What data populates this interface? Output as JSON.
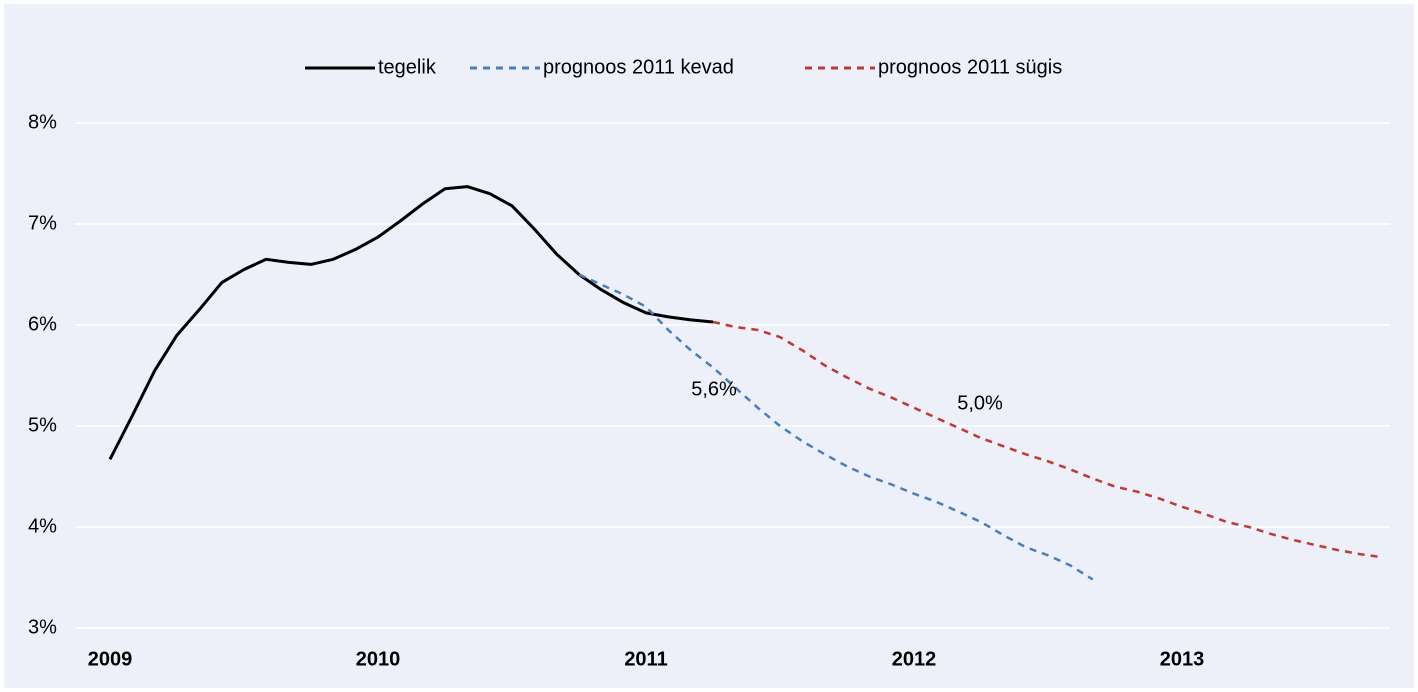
{
  "chart_data": {
    "type": "line",
    "xlim": [
      2009,
      2013.776
    ],
    "xticks": [
      2009,
      2010,
      2011,
      2012,
      2013
    ],
    "ylim": [
      3,
      8
    ],
    "yticks": [
      {
        "value": 3,
        "label": "3%"
      },
      {
        "value": 4,
        "label": "4%"
      },
      {
        "value": 5,
        "label": "5%"
      },
      {
        "value": 6,
        "label": "6%"
      },
      {
        "value": 7,
        "label": "7%"
      },
      {
        "value": 8,
        "label": "8%"
      }
    ],
    "grid": true,
    "legend": "top",
    "annotations": [
      "5,6%",
      "5,0%"
    ],
    "series": [
      {
        "name": "tegelik",
        "color": "#000000",
        "dash": "solid",
        "x": [
          2009,
          2009.083,
          2009.167,
          2009.25,
          2009.333,
          2009.417,
          2009.5,
          2009.583,
          2009.667,
          2009.75,
          2009.833,
          2009.917,
          2010,
          2010.083,
          2010.167,
          2010.25,
          2010.333,
          2010.417,
          2010.5,
          2010.583,
          2010.667,
          2010.75,
          2010.833,
          2010.917,
          2011,
          2011.083,
          2011.167,
          2011.25
        ],
        "values": [
          4.67,
          5.1,
          5.55,
          5.9,
          6.15,
          6.42,
          6.55,
          6.65,
          6.62,
          6.6,
          6.65,
          6.75,
          6.87,
          7.03,
          7.2,
          7.35,
          7.37,
          7.3,
          7.18,
          6.95,
          6.7,
          6.5,
          6.35,
          6.22,
          6.12,
          6.08,
          6.05,
          6.03
        ]
      },
      {
        "name": "prognoos 2011 kevad",
        "color": "#4a7ebb",
        "dash": "dashed",
        "x": [
          2010.75,
          2010.833,
          2010.917,
          2011,
          2011.083,
          2011.167,
          2011.25,
          2011.333,
          2011.417,
          2011.5,
          2011.583,
          2011.667,
          2011.75,
          2011.833,
          2011.917,
          2012,
          2012.083,
          2012.167,
          2012.25,
          2012.333,
          2012.417,
          2012.5,
          2012.583,
          2012.667
        ],
        "values": [
          6.5,
          6.4,
          6.3,
          6.18,
          5.95,
          5.75,
          5.58,
          5.38,
          5.18,
          5.0,
          4.85,
          4.72,
          4.6,
          4.5,
          4.42,
          4.33,
          4.25,
          4.15,
          4.05,
          3.92,
          3.8,
          3.72,
          3.62,
          3.48
        ]
      },
      {
        "name": "prognoos 2011 sügis",
        "color": "#be3a34",
        "dash": "dashed",
        "x": [
          2011.25,
          2011.333,
          2011.417,
          2011.5,
          2011.583,
          2011.667,
          2011.75,
          2011.833,
          2011.917,
          2012,
          2012.083,
          2012.167,
          2012.25,
          2012.333,
          2012.417,
          2012.5,
          2012.583,
          2012.667,
          2012.75,
          2012.833,
          2012.917,
          2013,
          2013.083,
          2013.167,
          2013.25,
          2013.333,
          2013.417,
          2013.5,
          2013.583,
          2013.667,
          2013.75
        ],
        "values": [
          6.03,
          5.98,
          5.95,
          5.88,
          5.75,
          5.6,
          5.48,
          5.37,
          5.28,
          5.18,
          5.08,
          4.98,
          4.88,
          4.8,
          4.72,
          4.65,
          4.57,
          4.48,
          4.4,
          4.35,
          4.28,
          4.2,
          4.13,
          4.05,
          4.0,
          3.93,
          3.87,
          3.82,
          3.77,
          3.73,
          3.7
        ]
      }
    ]
  }
}
